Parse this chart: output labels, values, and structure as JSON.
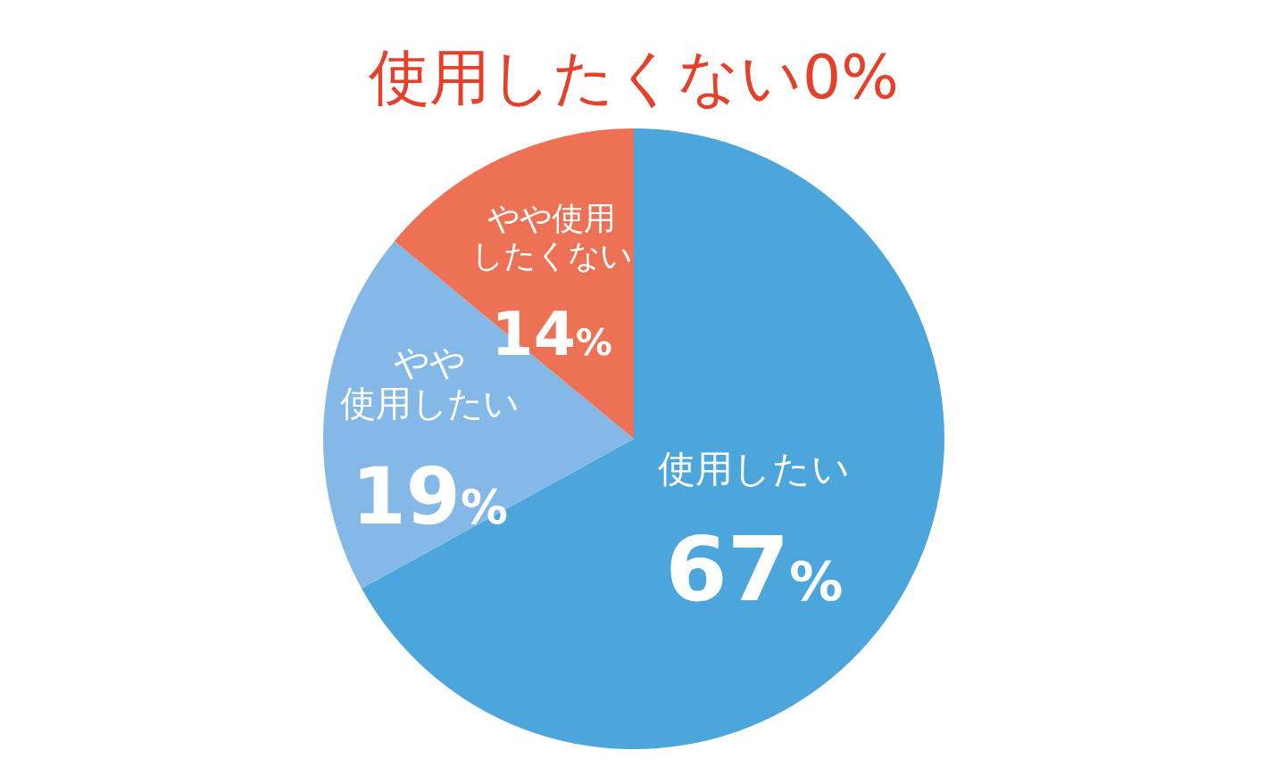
{
  "chart_data": {
    "type": "pie",
    "title": "使用したくない0%",
    "categories": [
      "使用したい",
      "やや使用したい",
      "やや使用したくない"
    ],
    "values": [
      67,
      19,
      14
    ],
    "colors": [
      "#4ca6dc",
      "#84b9e7",
      "#ed7255"
    ],
    "value_labels": [
      "67%",
      "19%",
      "14%"
    ]
  }
}
